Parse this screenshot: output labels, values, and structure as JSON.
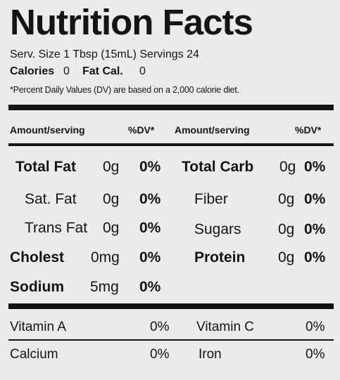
{
  "title": "Nutrition Facts",
  "serving": {
    "line": "Serv. Size 1 Tbsp (15mL) Servings 24"
  },
  "calories": {
    "label": "Calories",
    "value": "0",
    "fat_label": "Fat Cal.",
    "fat_value": "0"
  },
  "footnote": "*Percent Daily Values (DV) are based on a 2,000 calorie diet.",
  "headers": {
    "amount_left": "Amount/serving",
    "dv_left": "%DV*",
    "amount_right": "Amount/serving",
    "dv_right": "%DV*"
  },
  "nutrients_left": [
    {
      "name": "Total Fat",
      "amount": "0g",
      "dv": "0%"
    },
    {
      "name": "Sat. Fat",
      "amount": "0g",
      "dv": "0%"
    },
    {
      "name": "Trans Fat",
      "amount": "0g",
      "dv": "0%"
    },
    {
      "name": "Cholest",
      "amount": "0mg",
      "dv": "0%"
    },
    {
      "name": "Sodium",
      "amount": "5mg",
      "dv": "0%"
    }
  ],
  "nutrients_right": [
    {
      "name": "Total Carb",
      "amount": "0g",
      "dv": "0%"
    },
    {
      "name": "Fiber",
      "amount": "0g",
      "dv": "0%"
    },
    {
      "name": "Sugars",
      "amount": "0g",
      "dv": "0%"
    },
    {
      "name": "Protein",
      "amount": "0g",
      "dv": "0%"
    }
  ],
  "vitamins": [
    {
      "name": "Vitamin A",
      "dv": "0%"
    },
    {
      "name": "Vitamin C",
      "dv": "0%"
    },
    {
      "name": "Calcium",
      "dv": "0%"
    },
    {
      "name": "Iron",
      "dv": "0%"
    }
  ]
}
